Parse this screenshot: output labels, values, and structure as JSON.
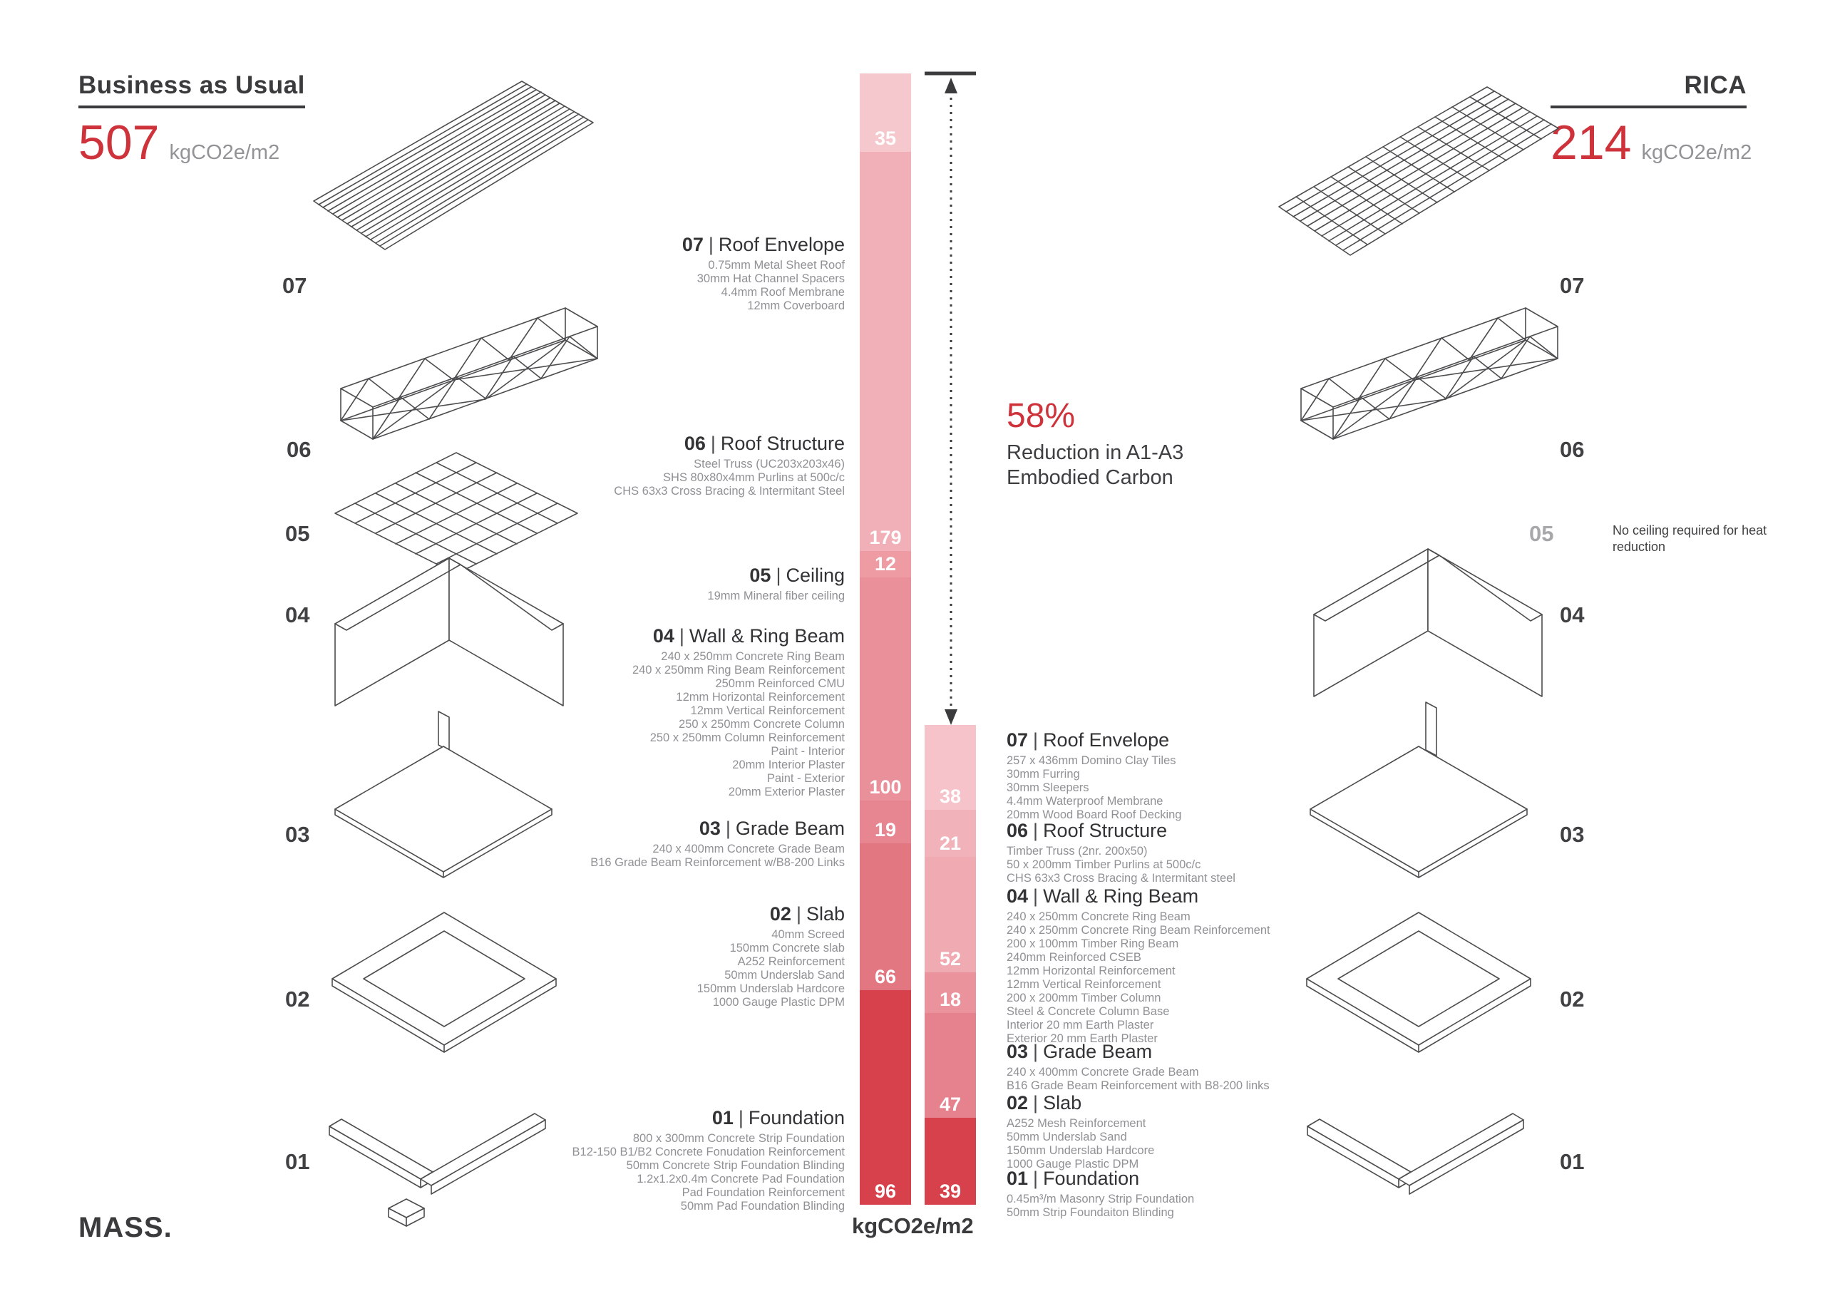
{
  "page": {
    "logo": "MASS.",
    "axis_label": "kgCO2e/m2",
    "separator": "|"
  },
  "left_panel": {
    "title": "Business as Usual",
    "value": "507",
    "unit": "kgCO2e/m2",
    "layer_labels": [
      "07",
      "06",
      "05",
      "04",
      "03",
      "02",
      "01"
    ]
  },
  "right_panel": {
    "title": "RICA",
    "value": "214",
    "unit": "kgCO2e/m2",
    "layer_labels": [
      "07",
      "06",
      "04",
      "03",
      "02",
      "01"
    ],
    "ceiling_note_number": "05",
    "ceiling_note": "No ceiling required for heat reduction"
  },
  "reduction": {
    "percent": "58%",
    "line1": "Reduction in A1-A3",
    "line2": "Embodied Carbon"
  },
  "bau_components": [
    {
      "num": "07",
      "name": "Roof Envelope",
      "details": [
        "0.75mm Metal Sheet Roof",
        "30mm Hat Channel Spacers",
        "4.4mm Roof Membrane",
        "12mm Coverboard"
      ]
    },
    {
      "num": "06",
      "name": "Roof Structure",
      "details": [
        "Steel Truss (UC203x203x46)",
        "SHS 80x80x4mm Purlins at 500c/c",
        "CHS 63x3 Cross Bracing & Intermitant Steel"
      ]
    },
    {
      "num": "05",
      "name": "Ceiling",
      "details": [
        "19mm Mineral fiber ceiling"
      ]
    },
    {
      "num": "04",
      "name": "Wall & Ring Beam",
      "details": [
        "240 x 250mm Concrete Ring Beam",
        "240 x 250mm Ring Beam Reinforcement",
        "250mm Reinforced CMU",
        "12mm Horizontal Reinforcement",
        "12mm Vertical Reinforcement",
        "250 x 250mm Concrete Column",
        "250 x 250mm Column Reinforcement",
        "Paint - Interior",
        "20mm Interior Plaster",
        "Paint - Exterior",
        "20mm Exterior Plaster"
      ]
    },
    {
      "num": "03",
      "name": "Grade Beam",
      "details": [
        "240 x 400mm Concrete Grade Beam",
        "B16 Grade Beam Reinforcement w/B8-200 Links"
      ]
    },
    {
      "num": "02",
      "name": "Slab",
      "details": [
        "40mm Screed",
        "150mm Concrete slab",
        "A252 Reinforcement",
        "50mm Underslab Sand",
        "150mm Underslab Hardcore",
        "1000 Gauge Plastic DPM"
      ]
    },
    {
      "num": "01",
      "name": "Foundation",
      "details": [
        "800 x 300mm Concrete Strip Foundation",
        "B12-150 B1/B2 Concrete Fonudation Reinforcement",
        "50mm Concrete Strip Foundation Blinding",
        "1.2x1.2x0.4m Concrete Pad Foundation",
        "Pad Foundation Reinforcement",
        "50mm Pad Foundation Blinding"
      ]
    }
  ],
  "rica_components": [
    {
      "num": "07",
      "name": "Roof Envelope",
      "details": [
        "257 x 436mm Domino Clay Tiles",
        "30mm Furring",
        "30mm Sleepers",
        "4.4mm Waterproof Membrane",
        "20mm Wood Board Roof Decking"
      ]
    },
    {
      "num": "06",
      "name": "Roof Structure",
      "details": [
        "Timber Truss (2nr. 200x50)",
        "50 x 200mm Timber Purlins at 500c/c",
        "CHS 63x3 Cross Bracing & Intermitant steel"
      ]
    },
    {
      "num": "04",
      "name": "Wall & Ring Beam",
      "details": [
        "240 x 250mm Concrete Ring Beam",
        "240 x 250mm Concrete Ring Beam Reinforcement",
        "200 x 100mm Timber Ring Beam",
        "240mm Reinforced CSEB",
        "12mm Horizontal Reinforcement",
        "12mm Vertical Reinforcement",
        "200 x 200mm Timber Column",
        "Steel & Concrete Column Base",
        "Interior 20 mm Earth Plaster",
        "Exterior 20 mm Earth Plaster"
      ]
    },
    {
      "num": "03",
      "name": "Grade Beam",
      "details": [
        "240 x 400mm Concrete Grade Beam",
        "B16 Grade Beam Reinforcement with B8-200 links"
      ]
    },
    {
      "num": "02",
      "name": "Slab",
      "details": [
        "A252 Mesh Reinforcement",
        "50mm Underslab Sand",
        "150mm Underslab Hardcore",
        "1000 Gauge Plastic DPM"
      ]
    },
    {
      "num": "01",
      "name": "Foundation",
      "details": [
        "0.45m³/m Masonry Strip Foundation",
        "50mm Strip Foundaiton Blinding"
      ]
    }
  ],
  "chart_data": {
    "type": "bar",
    "subtype": "stacked-comparison",
    "unit": "kgCO2e/m2",
    "annotation": "58% Reduction in A1-A3 Embodied Carbon",
    "series": [
      {
        "name": "Business as Usual",
        "total": 507,
        "colors": [
          "#f5c8cd",
          "#f1afb7",
          "#ee9ba4",
          "#ea909a",
          "#e78591",
          "#e27681",
          "#d7414c"
        ],
        "segments": [
          {
            "component": "07 Roof Envelope",
            "value": 35
          },
          {
            "component": "06 Roof Structure",
            "value": 179
          },
          {
            "component": "05 Ceiling",
            "value": 12
          },
          {
            "component": "04 Wall & Ring Beam",
            "value": 100
          },
          {
            "component": "03 Grade Beam",
            "value": 19
          },
          {
            "component": "02 Slab",
            "value": 66
          },
          {
            "component": "01 Foundation",
            "value": 96
          }
        ]
      },
      {
        "name": "RICA",
        "total": 214,
        "colors": [
          "#f5c3c9",
          "#f2b2ba",
          "#f0aab2",
          "#ea939d",
          "#e5828d",
          "#d7414c"
        ],
        "segments": [
          {
            "component": "07 Roof Envelope",
            "value": 38
          },
          {
            "component": "06 Roof Structure",
            "value": 21
          },
          {
            "component": "04 Wall & Ring Beam",
            "value": 52
          },
          {
            "component": "03 Grade Beam",
            "value": 18
          },
          {
            "component": "02 Slab",
            "value": 47
          },
          {
            "component": "01 Foundation",
            "value": 39
          }
        ]
      }
    ]
  }
}
